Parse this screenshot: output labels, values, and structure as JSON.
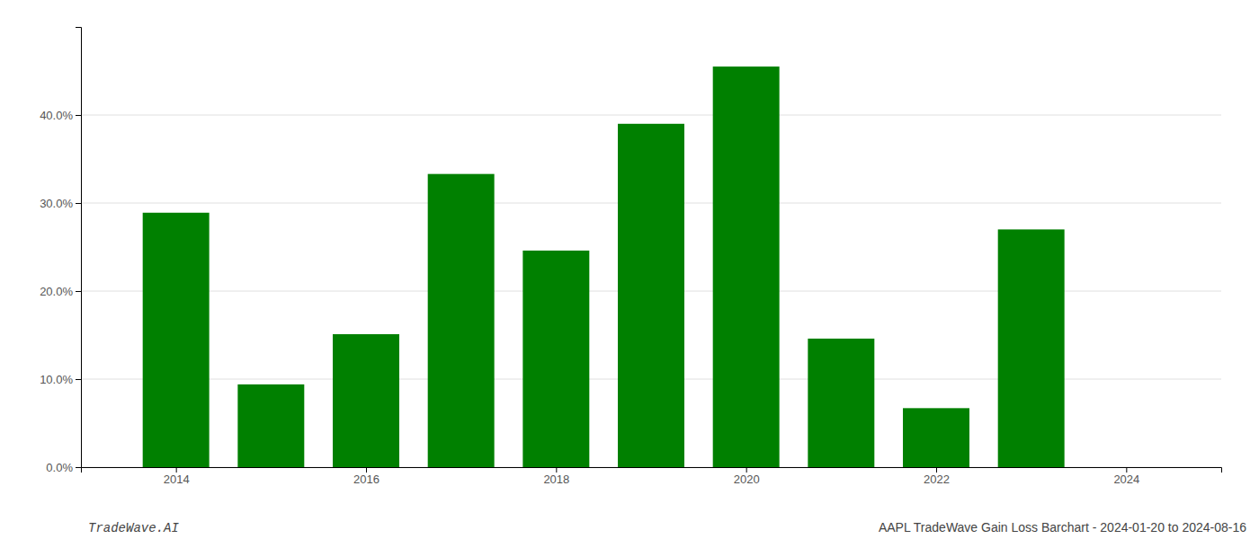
{
  "chart_data": {
    "type": "bar",
    "x": [
      2014,
      2015,
      2016,
      2017,
      2018,
      2019,
      2020,
      2021,
      2022,
      2023
    ],
    "values": [
      0.289,
      0.094,
      0.151,
      0.333,
      0.246,
      0.39,
      0.455,
      0.146,
      0.067,
      0.27
    ],
    "color": "#008000",
    "xlim": [
      2013.0,
      2025.0
    ],
    "xticks": [
      2014,
      2016,
      2018,
      2020,
      2022,
      2024
    ],
    "ylim": [
      0,
      0.5
    ],
    "yticks": [
      {
        "value": 0.0,
        "label": "0.0%"
      },
      {
        "value": 0.1,
        "label": "10.0%"
      },
      {
        "value": 0.2,
        "label": "20.0%"
      },
      {
        "value": 0.3,
        "label": "30.0%"
      },
      {
        "value": 0.4,
        "label": "40.0%"
      }
    ],
    "grid": true,
    "annotations": [
      "TradeWave.AI",
      "AAPL TradeWave Gain Loss Barchart - 2024-01-20 to 2024-08-16"
    ]
  }
}
